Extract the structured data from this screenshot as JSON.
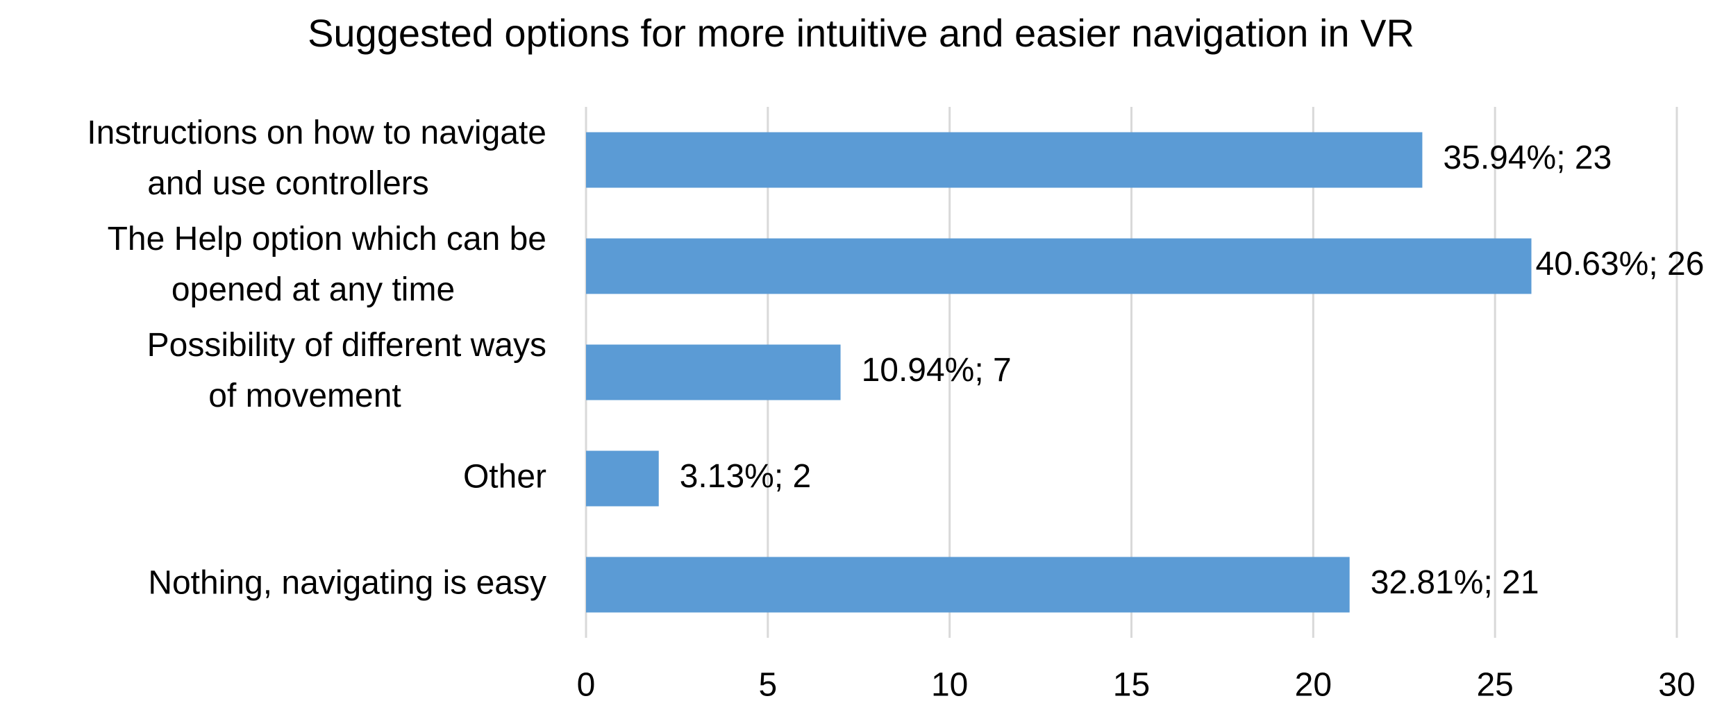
{
  "chart_data": {
    "type": "bar",
    "orientation": "horizontal",
    "title": "Suggested options for more intuitive and easier navigation in VR",
    "categories": [
      "Instructions on how to navigate and use controllers",
      "The Help option which can be opened at any time",
      "Possibility of different ways of movement",
      "Other",
      "Nothing, navigating is easy"
    ],
    "values": [
      23,
      26,
      7,
      2,
      21
    ],
    "value_labels": [
      "35.94%; 23",
      "40.63%; 26",
      "10.94%; 7",
      "3.13%; 2",
      "32.81%; 21"
    ],
    "color": "#5b9bd5",
    "xlim": [
      0,
      30
    ],
    "xticks": [
      0,
      5,
      10,
      15,
      20,
      25,
      30
    ],
    "grid": true
  }
}
